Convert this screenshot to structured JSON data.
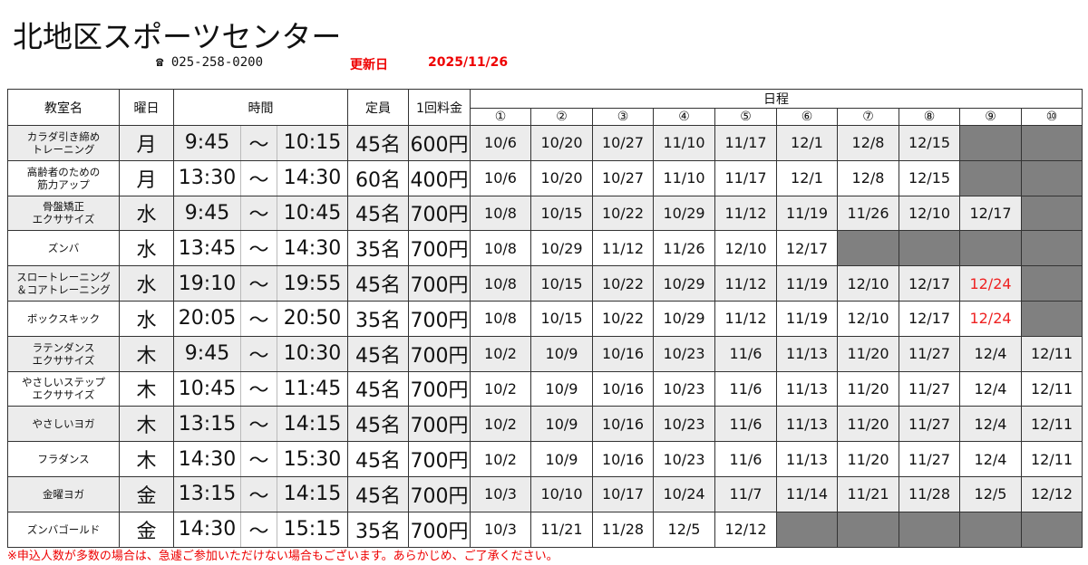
{
  "title": "北地区スポーツセンター",
  "phone": "☎ 025-258-0200",
  "updated_label": "更新日",
  "updated_date": "2025/11/26",
  "headers": {
    "name": "教室名",
    "day": "曜日",
    "time": "時間",
    "capacity": "定員",
    "fee": "1回料金",
    "schedule": "日程",
    "nums": [
      "①",
      "②",
      "③",
      "④",
      "⑤",
      "⑥",
      "⑦",
      "⑧",
      "⑨",
      "⑩"
    ]
  },
  "rows": [
    {
      "name": "カラダ引き締め\nトレーニング",
      "day": "月",
      "start": "9:45",
      "sep": "～",
      "end": "10:15",
      "cap": "45名",
      "fee": "600円",
      "dates": [
        "10/6",
        "10/20",
        "10/27",
        "11/10",
        "11/17",
        "12/1",
        "12/8",
        "12/15",
        null,
        null
      ]
    },
    {
      "name": "高齢者のための\n筋力アップ",
      "day": "月",
      "start": "13:30",
      "sep": "～",
      "end": "14:30",
      "cap": "60名",
      "fee": "400円",
      "dates": [
        "10/6",
        "10/20",
        "10/27",
        "11/10",
        "11/17",
        "12/1",
        "12/8",
        "12/15",
        null,
        null
      ]
    },
    {
      "name": "骨盤矯正\nエクササイズ",
      "day": "水",
      "start": "9:45",
      "sep": "～",
      "end": "10:45",
      "cap": "45名",
      "fee": "700円",
      "dates": [
        "10/8",
        "10/15",
        "10/22",
        "10/29",
        "11/12",
        "11/19",
        "11/26",
        "12/10",
        "12/17",
        null
      ]
    },
    {
      "name": "ズンバ",
      "day": "水",
      "start": "13:45",
      "sep": "～",
      "end": "14:30",
      "cap": "35名",
      "fee": "700円",
      "dates": [
        "10/8",
        "10/29",
        "11/12",
        "11/26",
        "12/10",
        "12/17",
        null,
        null,
        null,
        null
      ]
    },
    {
      "name": "スロートレーニング\n＆コアトレーニング",
      "day": "水",
      "start": "19:10",
      "sep": "～",
      "end": "19:55",
      "cap": "45名",
      "fee": "700円",
      "dates": [
        "10/8",
        "10/15",
        "10/22",
        "10/29",
        "11/12",
        "11/19",
        "12/10",
        "12/17",
        "12/24",
        null
      ],
      "red": [
        8
      ]
    },
    {
      "name": "ボックスキック",
      "day": "水",
      "start": "20:05",
      "sep": "～",
      "end": "20:50",
      "cap": "35名",
      "fee": "700円",
      "dates": [
        "10/8",
        "10/15",
        "10/22",
        "10/29",
        "11/12",
        "11/19",
        "12/10",
        "12/17",
        "12/24",
        null
      ],
      "red": [
        8
      ]
    },
    {
      "name": "ラテンダンス\nエクササイズ",
      "day": "木",
      "start": "9:45",
      "sep": "～",
      "end": "10:30",
      "cap": "45名",
      "fee": "700円",
      "dates": [
        "10/2",
        "10/9",
        "10/16",
        "10/23",
        "11/6",
        "11/13",
        "11/20",
        "11/27",
        "12/4",
        "12/11"
      ]
    },
    {
      "name": "やさしいステップ\nエクササイズ",
      "day": "木",
      "start": "10:45",
      "sep": "～",
      "end": "11:45",
      "cap": "45名",
      "fee": "700円",
      "dates": [
        "10/2",
        "10/9",
        "10/16",
        "10/23",
        "11/6",
        "11/13",
        "11/20",
        "11/27",
        "12/4",
        "12/11"
      ]
    },
    {
      "name": "やさしいヨガ",
      "day": "木",
      "start": "13:15",
      "sep": "～",
      "end": "14:15",
      "cap": "45名",
      "fee": "700円",
      "dates": [
        "10/2",
        "10/9",
        "10/16",
        "10/23",
        "11/6",
        "11/13",
        "11/20",
        "11/27",
        "12/4",
        "12/11"
      ]
    },
    {
      "name": "フラダンス",
      "day": "木",
      "start": "14:30",
      "sep": "～",
      "end": "15:30",
      "cap": "45名",
      "fee": "700円",
      "dates": [
        "10/2",
        "10/9",
        "10/16",
        "10/23",
        "11/6",
        "11/13",
        "11/20",
        "11/27",
        "12/4",
        "12/11"
      ]
    },
    {
      "name": "金曜ヨガ",
      "day": "金",
      "start": "13:15",
      "sep": "～",
      "end": "14:15",
      "cap": "45名",
      "fee": "700円",
      "dates": [
        "10/3",
        "10/10",
        "10/17",
        "10/24",
        "11/7",
        "11/14",
        "11/21",
        "11/28",
        "12/5",
        "12/12"
      ]
    },
    {
      "name": "ズンバゴールド",
      "day": "金",
      "start": "14:30",
      "sep": "～",
      "end": "15:15",
      "cap": "35名",
      "fee": "700円",
      "dates": [
        "10/3",
        "11/21",
        "11/28",
        "12/5",
        "12/12",
        null,
        null,
        null,
        null,
        null
      ]
    }
  ],
  "note": "※申込人数が多数の場合は、急遽ご参加いただけない場合もございます。あらかじめ、ご了承ください。",
  "colors": {
    "note": "#e00000",
    "holiday": "#e22222",
    "unavailable": "#808080",
    "row_alt": "#ececec"
  }
}
